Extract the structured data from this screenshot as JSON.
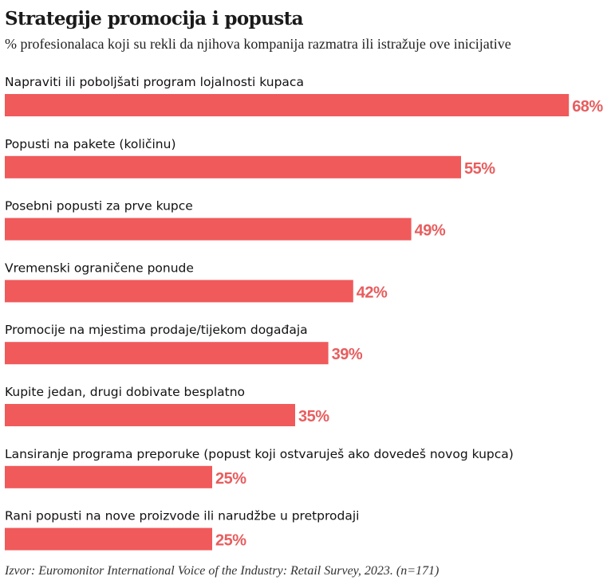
{
  "title": "Strategije promocija i popusta",
  "subtitle": "% profesionalaca koji su rekli da njihova kompanija razmatra ili istražuje ove inicijative",
  "source": "Izvor: Euromonitor International Voice of the Industry: Retail Survey, 2023. (n=171)",
  "colors": {
    "bar": "#f05a5b",
    "label": "#e85d5e"
  },
  "chart_data": {
    "type": "bar",
    "orientation": "horizontal",
    "categories": [
      "Napraviti ili poboljšati program lojalnosti kupaca",
      "Popusti na pakete (količinu)",
      "Posebni popusti za prve kupce",
      "Vremenski ograničene ponude",
      "Promocije na mjestima prodaje/tijekom događaja",
      "Kupite jedan, drugi dobivate besplatno",
      "Lansiranje programa preporuke (popust koji ostvaruješ ako dovedeš novog kupca)",
      "Rani popusti na nove proizvode ili narudžbe u pretprodaji"
    ],
    "values": [
      68,
      55,
      49,
      42,
      39,
      35,
      25,
      25
    ],
    "value_labels": [
      "68%",
      "55%",
      "49%",
      "42%",
      "39%",
      "35%",
      "25%",
      "25%"
    ],
    "unit": "%",
    "grid": false,
    "legend": "none"
  }
}
